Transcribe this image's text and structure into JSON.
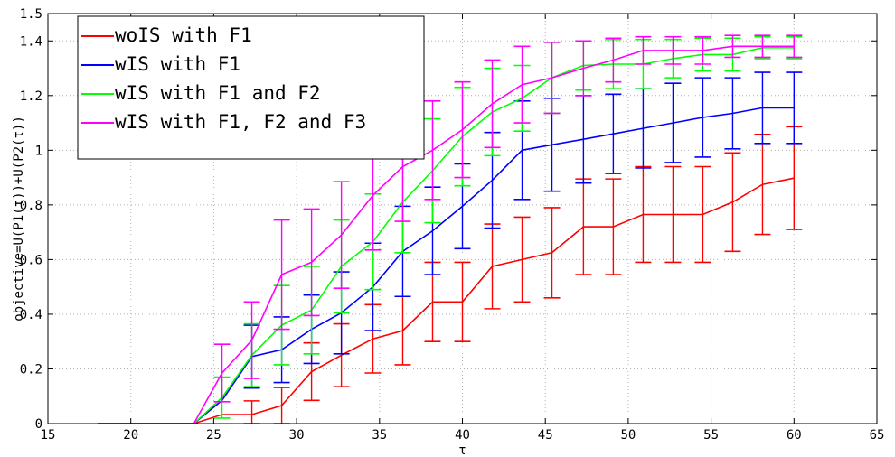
{
  "chart_data": {
    "type": "line",
    "title": "",
    "xlabel": "τ",
    "ylabel": "objective=U(P1(τ))+U(P2(τ))",
    "xlim": [
      15,
      65
    ],
    "ylim": [
      0,
      1.5
    ],
    "xticks": [
      "15",
      "20",
      "25",
      "30",
      "35",
      "40",
      "45",
      "50",
      "55",
      "60",
      "65"
    ],
    "yticks": [
      "0",
      "0.2",
      "0.4",
      "0.6",
      "0.8",
      "1",
      "1.2",
      "1.4",
      "1.5"
    ],
    "grid": true,
    "legend_position": "top-left",
    "x": [
      18,
      20,
      22,
      23.8,
      25.5,
      27.3,
      29.1,
      30.9,
      32.7,
      34.6,
      36.4,
      38.2,
      40,
      41.8,
      43.6,
      45.4,
      47.3,
      49.1,
      50.9,
      52.7,
      54.5,
      56.3,
      58.1,
      60
    ],
    "series": [
      {
        "name": "woIS with F1",
        "color": "#ff0000",
        "values": [
          0,
          0,
          0,
          0,
          0.033,
          0.033,
          0.066,
          0.19,
          0.25,
          0.31,
          0.34,
          0.445,
          0.445,
          0.575,
          0.6,
          0.625,
          0.72,
          0.72,
          0.765,
          0.765,
          0.765,
          0.81,
          0.875,
          0.898
        ],
        "error": [
          null,
          null,
          null,
          null,
          null,
          0.05,
          0.066,
          0.105,
          0.115,
          0.125,
          0.125,
          0.145,
          0.145,
          0.155,
          0.155,
          0.165,
          0.175,
          0.175,
          0.175,
          0.175,
          0.175,
          0.18,
          0.183,
          0.188
        ]
      },
      {
        "name": "wIS with F1",
        "color": "#0000ff",
        "values": [
          0,
          0,
          0,
          0,
          0.085,
          0.245,
          0.27,
          0.345,
          0.405,
          0.5,
          0.63,
          0.705,
          0.795,
          0.89,
          1.0,
          1.02,
          1.04,
          1.06,
          1.08,
          1.1,
          1.12,
          1.135,
          1.155,
          1.155
        ],
        "error": [
          null,
          null,
          null,
          null,
          null,
          0.115,
          0.12,
          0.125,
          0.15,
          0.16,
          0.165,
          0.16,
          0.155,
          0.175,
          0.18,
          0.17,
          0.16,
          0.145,
          0.145,
          0.145,
          0.145,
          0.13,
          0.13,
          0.13
        ]
      },
      {
        "name": "wIS with F1 and F2",
        "color": "#00ff00",
        "values": [
          0,
          0,
          0,
          0,
          0.095,
          0.25,
          0.36,
          0.415,
          0.575,
          0.665,
          0.81,
          0.925,
          1.05,
          1.14,
          1.19,
          1.265,
          1.31,
          1.315,
          1.315,
          1.335,
          1.35,
          1.35,
          1.375,
          1.375
        ],
        "error": [
          null,
          null,
          null,
          null,
          0.075,
          0.115,
          0.145,
          0.16,
          0.17,
          0.175,
          0.185,
          0.19,
          0.18,
          0.16,
          0.12,
          0.13,
          0.09,
          0.09,
          0.09,
          0.07,
          0.06,
          0.06,
          0.04,
          0.04
        ]
      },
      {
        "name": "wIS with F1, F2 and F3",
        "color": "#ff00ff",
        "values": [
          0,
          0,
          0,
          0,
          0.185,
          0.305,
          0.545,
          0.59,
          0.69,
          0.835,
          0.94,
          1.0,
          1.075,
          1.17,
          1.24,
          1.265,
          1.3,
          1.33,
          1.365,
          1.365,
          1.365,
          1.38,
          1.38,
          1.38
        ],
        "error": [
          null,
          null,
          null,
          null,
          0.105,
          0.14,
          0.2,
          0.195,
          0.195,
          0.2,
          0.2,
          0.18,
          0.175,
          0.16,
          0.14,
          0.13,
          0.1,
          0.08,
          0.05,
          0.05,
          0.05,
          0.04,
          0.04,
          0.04
        ]
      }
    ]
  }
}
